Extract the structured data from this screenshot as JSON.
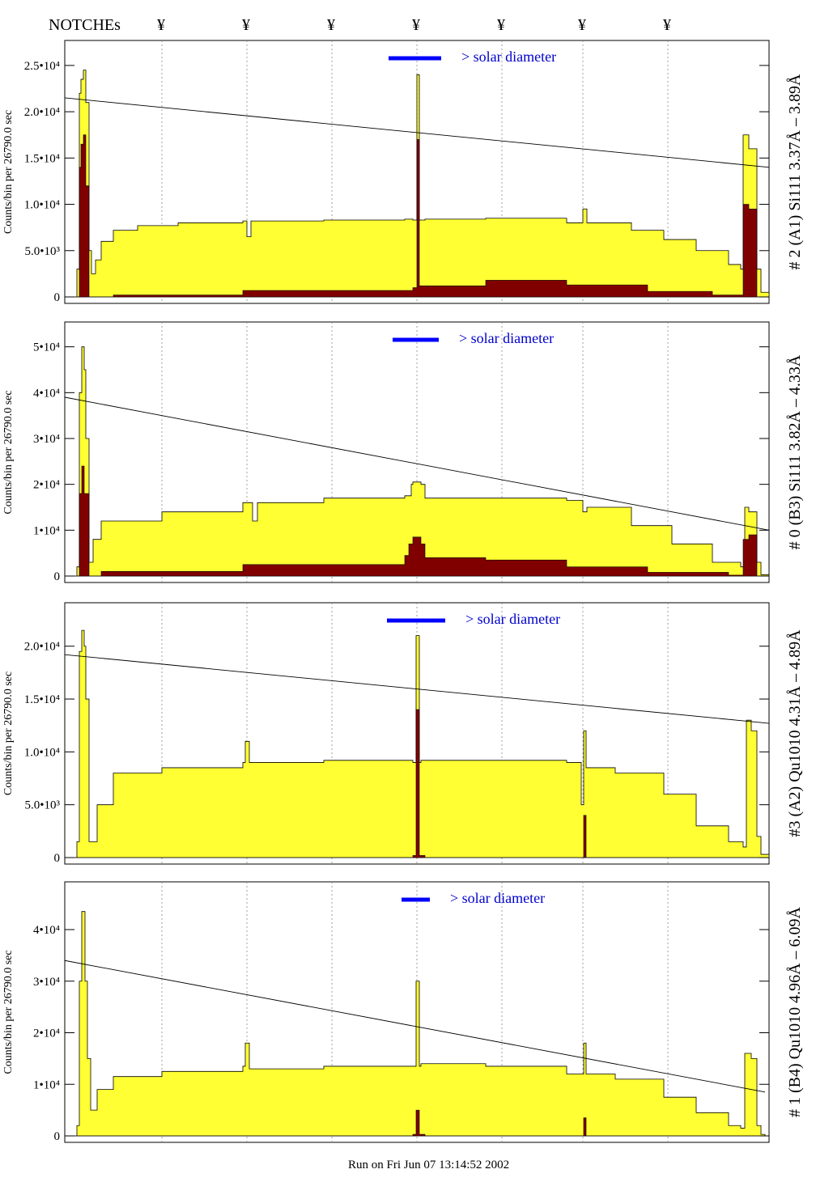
{
  "header": {
    "notches_label": "NOTCHEs",
    "notch_symbol": "¥",
    "notch_x": [
      200,
      305,
      410,
      515,
      620,
      720,
      825
    ]
  },
  "colors": {
    "total_fill": "#ffff33",
    "component_fill": "#800000",
    "solar_bar": "#0000ff",
    "text_blue": "#0000cc"
  },
  "footer": {
    "run_text": "Run on Fri Jun 07 13:14:52 2002"
  },
  "chart_data": [
    {
      "type": "area",
      "panel_label": "# 2 (A1) Si111  3.37Å – 3.89Å",
      "ylabel": "Counts/bin per  26790.0 sec",
      "annotation": "> solar diameter",
      "ylim": [
        0,
        27000
      ],
      "yticks": [
        {
          "v": 0,
          "label": "0"
        },
        {
          "v": 5000,
          "label": "5.0•10³"
        },
        {
          "v": 10000,
          "label": "1.0•10⁴"
        },
        {
          "v": 15000,
          "label": "1.5•10⁴"
        },
        {
          "v": 20000,
          "label": "2.0•10⁴"
        },
        {
          "v": 25000,
          "label": "2.5•10⁴"
        }
      ],
      "solar_bar_x": [
        480,
        545
      ],
      "trend": {
        "x": [
          80,
          950
        ],
        "y": [
          21500,
          14000
        ]
      },
      "total": {
        "x": [
          80,
          90,
          95,
          98,
          100,
          103,
          106,
          110,
          113,
          118,
          125,
          140,
          170,
          220,
          300,
          305,
          310,
          400,
          500,
          510,
          515,
          518,
          525,
          600,
          700,
          718,
          720,
          725,
          780,
          820,
          860,
          900,
          915,
          918,
          925,
          935,
          940,
          950
        ],
        "y": [
          0,
          0,
          3000,
          22000,
          23500,
          24500,
          21000,
          5000,
          2500,
          4000,
          6000,
          7200,
          7700,
          8000,
          8200,
          6500,
          8200,
          8300,
          8400,
          8300,
          24000,
          8300,
          8400,
          8500,
          8000,
          8000,
          9500,
          8000,
          7200,
          6200,
          5000,
          3500,
          3000,
          17500,
          16000,
          3000,
          500,
          0
        ]
      },
      "component": {
        "x": [
          80,
          95,
          98,
          100,
          103,
          106,
          110,
          140,
          300,
          510,
          515,
          518,
          600,
          700,
          800,
          880,
          918,
          925,
          935,
          950
        ],
        "y": [
          0,
          0,
          14000,
          16500,
          17500,
          12000,
          0,
          200,
          700,
          1000,
          17000,
          1200,
          1800,
          1300,
          600,
          200,
          10000,
          9500,
          0,
          0
        ]
      }
    },
    {
      "type": "area",
      "panel_label": "# 0 (B3) Si111  3.82Å – 4.33Å",
      "ylabel": "Counts/bin per  26790.0 sec",
      "annotation": "> solar diameter",
      "ylim": [
        0,
        54000
      ],
      "yticks": [
        {
          "v": 0,
          "label": "0"
        },
        {
          "v": 10000,
          "label": "1•10⁴"
        },
        {
          "v": 20000,
          "label": "2•10⁴"
        },
        {
          "v": 30000,
          "label": "3•10⁴"
        },
        {
          "v": 40000,
          "label": "4•10⁴"
        },
        {
          "v": 50000,
          "label": "5•10⁴"
        }
      ],
      "solar_bar_x": [
        485,
        542
      ],
      "trend": {
        "x": [
          80,
          950
        ],
        "y": [
          39000,
          10000
        ]
      },
      "total": {
        "x": [
          80,
          90,
          95,
          98,
          101,
          104,
          106,
          110,
          115,
          125,
          200,
          300,
          312,
          318,
          400,
          500,
          508,
          510,
          520,
          525,
          600,
          700,
          720,
          725,
          780,
          830,
          880,
          915,
          920,
          925,
          935,
          940,
          950
        ],
        "y": [
          0,
          0,
          2000,
          40000,
          50000,
          45000,
          30000,
          3000,
          8000,
          12000,
          14000,
          16000,
          12000,
          16000,
          17000,
          17500,
          20000,
          20500,
          20000,
          17000,
          17000,
          16500,
          14000,
          15000,
          11000,
          7000,
          3000,
          2000,
          15000,
          14000,
          3000,
          300,
          0
        ]
      },
      "component": {
        "x": [
          80,
          95,
          98,
          101,
          104,
          110,
          125,
          300,
          500,
          505,
          510,
          520,
          525,
          600,
          700,
          800,
          900,
          918,
          925,
          935,
          950
        ],
        "y": [
          0,
          0,
          18000,
          24000,
          18000,
          0,
          1000,
          2500,
          4500,
          7000,
          8500,
          7000,
          4000,
          3500,
          2000,
          800,
          200,
          8000,
          9000,
          0,
          0
        ]
      }
    },
    {
      "type": "area",
      "panel_label": "#3 (A2) Qu1010  4.31Å – 4.89Å",
      "ylabel": "Counts/bin per  26790.0 sec",
      "annotation": "> solar diameter",
      "ylim": [
        0,
        23500
      ],
      "yticks": [
        {
          "v": 0,
          "label": "0"
        },
        {
          "v": 5000,
          "label": "5.0•10³"
        },
        {
          "v": 10000,
          "label": "1.0•10⁴"
        },
        {
          "v": 15000,
          "label": "1.5•10⁴"
        },
        {
          "v": 20000,
          "label": "2.0•10⁴"
        }
      ],
      "solar_bar_x": [
        478,
        550
      ],
      "trend": {
        "x": [
          80,
          950
        ],
        "y": [
          19200,
          12700
        ]
      },
      "total": {
        "x": [
          80,
          90,
          95,
          98,
          101,
          104,
          106,
          110,
          120,
          140,
          200,
          300,
          303,
          308,
          400,
          510,
          514,
          518,
          520,
          600,
          700,
          718,
          721,
          724,
          760,
          820,
          860,
          900,
          918,
          922,
          928,
          935,
          940,
          950
        ],
        "y": [
          0,
          0,
          1500,
          19500,
          21500,
          20000,
          15000,
          1500,
          5000,
          8000,
          8500,
          9000,
          11000,
          9000,
          9200,
          9000,
          21000,
          9000,
          9200,
          9200,
          9000,
          5000,
          12000,
          8500,
          8000,
          6000,
          3000,
          1500,
          1000,
          13000,
          12000,
          2000,
          300,
          0
        ]
      },
      "component": {
        "x": [
          80,
          500,
          510,
          514,
          518,
          525,
          718,
          721,
          724,
          950
        ],
        "y": [
          0,
          0,
          200,
          14000,
          200,
          0,
          0,
          4000,
          0,
          0
        ]
      }
    },
    {
      "type": "area",
      "panel_label": "# 1 (B4) Qu1010 4.96Å – 6.09Å",
      "ylabel": "Counts/bin per  26790.0 sec",
      "annotation": "> solar diameter",
      "ylim": [
        0,
        48000
      ],
      "yticks": [
        {
          "v": 0,
          "label": "0"
        },
        {
          "v": 10000,
          "label": "1•10⁴"
        },
        {
          "v": 20000,
          "label": "2•10⁴"
        },
        {
          "v": 30000,
          "label": "3•10⁴"
        },
        {
          "v": 40000,
          "label": "4•10⁴"
        }
      ],
      "solar_bar_x": [
        496,
        531
      ],
      "trend": {
        "x": [
          80,
          945
        ],
        "y": [
          34000,
          8500
        ]
      },
      "total": {
        "x": [
          80,
          90,
          95,
          98,
          101,
          105,
          108,
          112,
          120,
          140,
          200,
          300,
          303,
          308,
          400,
          510,
          514,
          518,
          520,
          600,
          700,
          718,
          721,
          724,
          760,
          820,
          860,
          900,
          915,
          920,
          928,
          935,
          940,
          945
        ],
        "y": [
          0,
          0,
          2000,
          30000,
          43500,
          30000,
          15000,
          5000,
          9000,
          11500,
          12500,
          13500,
          18000,
          13000,
          13500,
          13500,
          30000,
          13500,
          14000,
          13500,
          12000,
          12000,
          18000,
          12000,
          11000,
          7500,
          4500,
          2000,
          1500,
          16000,
          15000,
          2000,
          300,
          0
        ]
      },
      "component": {
        "x": [
          80,
          500,
          510,
          514,
          518,
          525,
          718,
          721,
          724,
          945
        ],
        "y": [
          0,
          0,
          300,
          5000,
          300,
          0,
          0,
          3500,
          0,
          0
        ]
      }
    }
  ]
}
